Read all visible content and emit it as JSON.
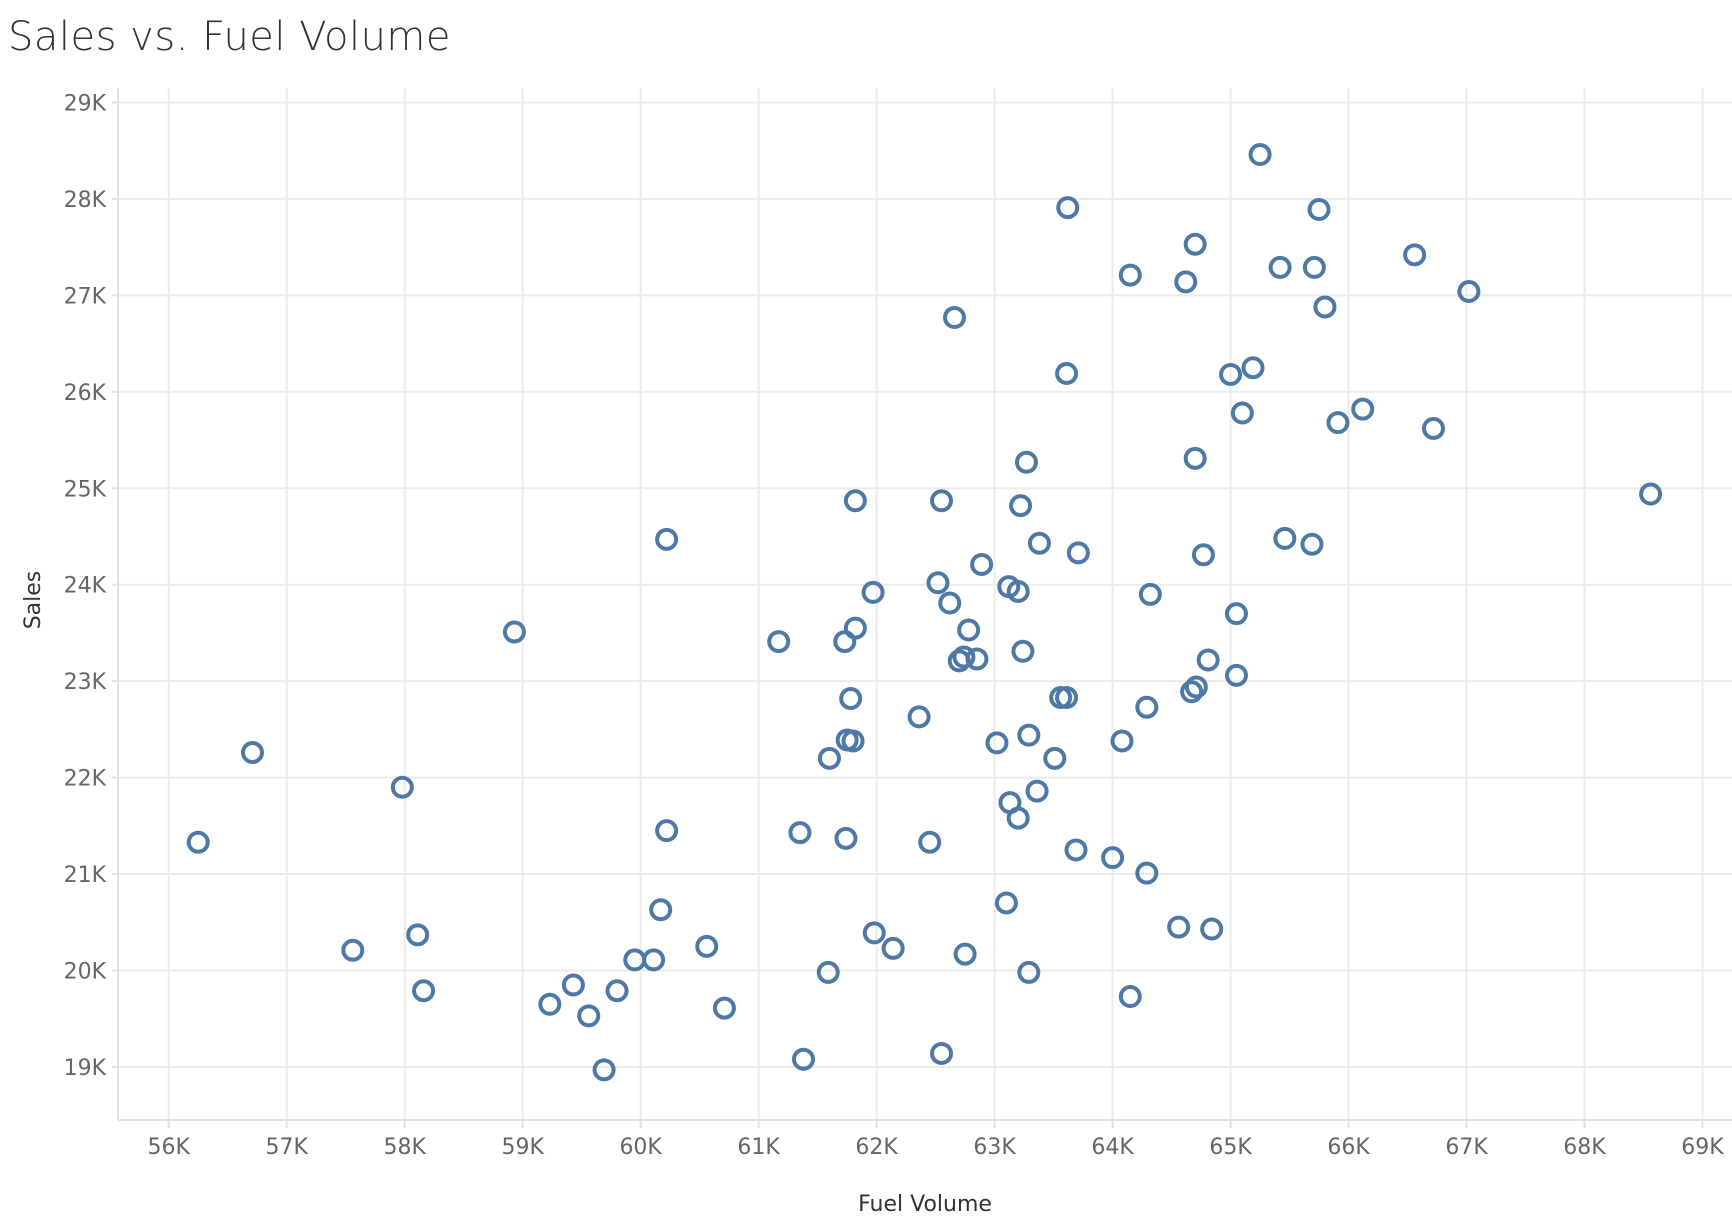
{
  "chart_data": {
    "type": "scatter",
    "title": "Sales vs. Fuel Volume",
    "xlabel": "Fuel Volume",
    "ylabel": "Sales",
    "xlim": [
      55570,
      69250
    ],
    "ylim": [
      18450,
      29150
    ],
    "xticks": [
      56000,
      57000,
      58000,
      59000,
      60000,
      61000,
      62000,
      63000,
      64000,
      65000,
      66000,
      67000,
      68000,
      69000
    ],
    "xtick_labels": [
      "56K",
      "57K",
      "58K",
      "59K",
      "60K",
      "61K",
      "62K",
      "63K",
      "64K",
      "65K",
      "66K",
      "67K",
      "68K",
      "69K"
    ],
    "yticks": [
      19000,
      20000,
      21000,
      22000,
      23000,
      24000,
      25000,
      26000,
      27000,
      28000,
      29000
    ],
    "ytick_labels": [
      "19K",
      "20K",
      "21K",
      "22K",
      "23K",
      "24K",
      "25K",
      "26K",
      "27K",
      "28K",
      "29K"
    ],
    "grid": true,
    "marker": "hollow-circle",
    "color": "#4e79a7",
    "points": [
      {
        "x": 65250,
        "y": 28460
      },
      {
        "x": 63620,
        "y": 27910
      },
      {
        "x": 65750,
        "y": 27890
      },
      {
        "x": 64700,
        "y": 27530
      },
      {
        "x": 64150,
        "y": 27210
      },
      {
        "x": 64620,
        "y": 27140
      },
      {
        "x": 65420,
        "y": 27290
      },
      {
        "x": 65710,
        "y": 27290
      },
      {
        "x": 66560,
        "y": 27420
      },
      {
        "x": 67020,
        "y": 27040
      },
      {
        "x": 65800,
        "y": 26880
      },
      {
        "x": 62660,
        "y": 26770
      },
      {
        "x": 63610,
        "y": 26190
      },
      {
        "x": 65000,
        "y": 26180
      },
      {
        "x": 65190,
        "y": 26250
      },
      {
        "x": 65100,
        "y": 25780
      },
      {
        "x": 66120,
        "y": 25820
      },
      {
        "x": 65910,
        "y": 25680
      },
      {
        "x": 66720,
        "y": 25620
      },
      {
        "x": 64700,
        "y": 25310
      },
      {
        "x": 63270,
        "y": 25270
      },
      {
        "x": 68560,
        "y": 24940
      },
      {
        "x": 61820,
        "y": 24870
      },
      {
        "x": 62550,
        "y": 24870
      },
      {
        "x": 63220,
        "y": 24820
      },
      {
        "x": 60220,
        "y": 24470
      },
      {
        "x": 63380,
        "y": 24430
      },
      {
        "x": 63710,
        "y": 24330
      },
      {
        "x": 65460,
        "y": 24480
      },
      {
        "x": 65690,
        "y": 24420
      },
      {
        "x": 64770,
        "y": 24310
      },
      {
        "x": 62890,
        "y": 24210
      },
      {
        "x": 62520,
        "y": 24020
      },
      {
        "x": 63120,
        "y": 23980
      },
      {
        "x": 63200,
        "y": 23930
      },
      {
        "x": 61970,
        "y": 23920
      },
      {
        "x": 64320,
        "y": 23900
      },
      {
        "x": 62620,
        "y": 23810
      },
      {
        "x": 65050,
        "y": 23700
      },
      {
        "x": 58930,
        "y": 23510
      },
      {
        "x": 61820,
        "y": 23550
      },
      {
        "x": 62780,
        "y": 23530
      },
      {
        "x": 61170,
        "y": 23410
      },
      {
        "x": 61730,
        "y": 23410
      },
      {
        "x": 63240,
        "y": 23310
      },
      {
        "x": 62700,
        "y": 23210
      },
      {
        "x": 62740,
        "y": 23250
      },
      {
        "x": 62850,
        "y": 23230
      },
      {
        "x": 64810,
        "y": 23220
      },
      {
        "x": 65050,
        "y": 23060
      },
      {
        "x": 64710,
        "y": 22940
      },
      {
        "x": 64670,
        "y": 22890
      },
      {
        "x": 61780,
        "y": 22820
      },
      {
        "x": 63560,
        "y": 22830
      },
      {
        "x": 63610,
        "y": 22830
      },
      {
        "x": 64290,
        "y": 22730
      },
      {
        "x": 62360,
        "y": 22630
      },
      {
        "x": 56710,
        "y": 22260
      },
      {
        "x": 61750,
        "y": 22390
      },
      {
        "x": 61800,
        "y": 22380
      },
      {
        "x": 63020,
        "y": 22360
      },
      {
        "x": 63290,
        "y": 22440
      },
      {
        "x": 64080,
        "y": 22380
      },
      {
        "x": 61600,
        "y": 22200
      },
      {
        "x": 63510,
        "y": 22200
      },
      {
        "x": 57980,
        "y": 21900
      },
      {
        "x": 63360,
        "y": 21860
      },
      {
        "x": 63130,
        "y": 21740
      },
      {
        "x": 63200,
        "y": 21580
      },
      {
        "x": 56250,
        "y": 21330
      },
      {
        "x": 60220,
        "y": 21450
      },
      {
        "x": 61350,
        "y": 21430
      },
      {
        "x": 61740,
        "y": 21370
      },
      {
        "x": 62450,
        "y": 21330
      },
      {
        "x": 63690,
        "y": 21250
      },
      {
        "x": 64000,
        "y": 21170
      },
      {
        "x": 64290,
        "y": 21010
      },
      {
        "x": 60170,
        "y": 20630
      },
      {
        "x": 63100,
        "y": 20700
      },
      {
        "x": 58110,
        "y": 20370
      },
      {
        "x": 57560,
        "y": 20210
      },
      {
        "x": 61980,
        "y": 20390
      },
      {
        "x": 62140,
        "y": 20230
      },
      {
        "x": 60560,
        "y": 20250
      },
      {
        "x": 64560,
        "y": 20450
      },
      {
        "x": 64840,
        "y": 20430
      },
      {
        "x": 59950,
        "y": 20110
      },
      {
        "x": 60110,
        "y": 20110
      },
      {
        "x": 62750,
        "y": 20170
      },
      {
        "x": 61590,
        "y": 19980
      },
      {
        "x": 63290,
        "y": 19980
      },
      {
        "x": 58160,
        "y": 19790
      },
      {
        "x": 59430,
        "y": 19850
      },
      {
        "x": 59800,
        "y": 19790
      },
      {
        "x": 59230,
        "y": 19650
      },
      {
        "x": 59560,
        "y": 19530
      },
      {
        "x": 60710,
        "y": 19610
      },
      {
        "x": 64150,
        "y": 19730
      },
      {
        "x": 61380,
        "y": 19080
      },
      {
        "x": 62550,
        "y": 19140
      },
      {
        "x": 59690,
        "y": 18970
      }
    ]
  }
}
